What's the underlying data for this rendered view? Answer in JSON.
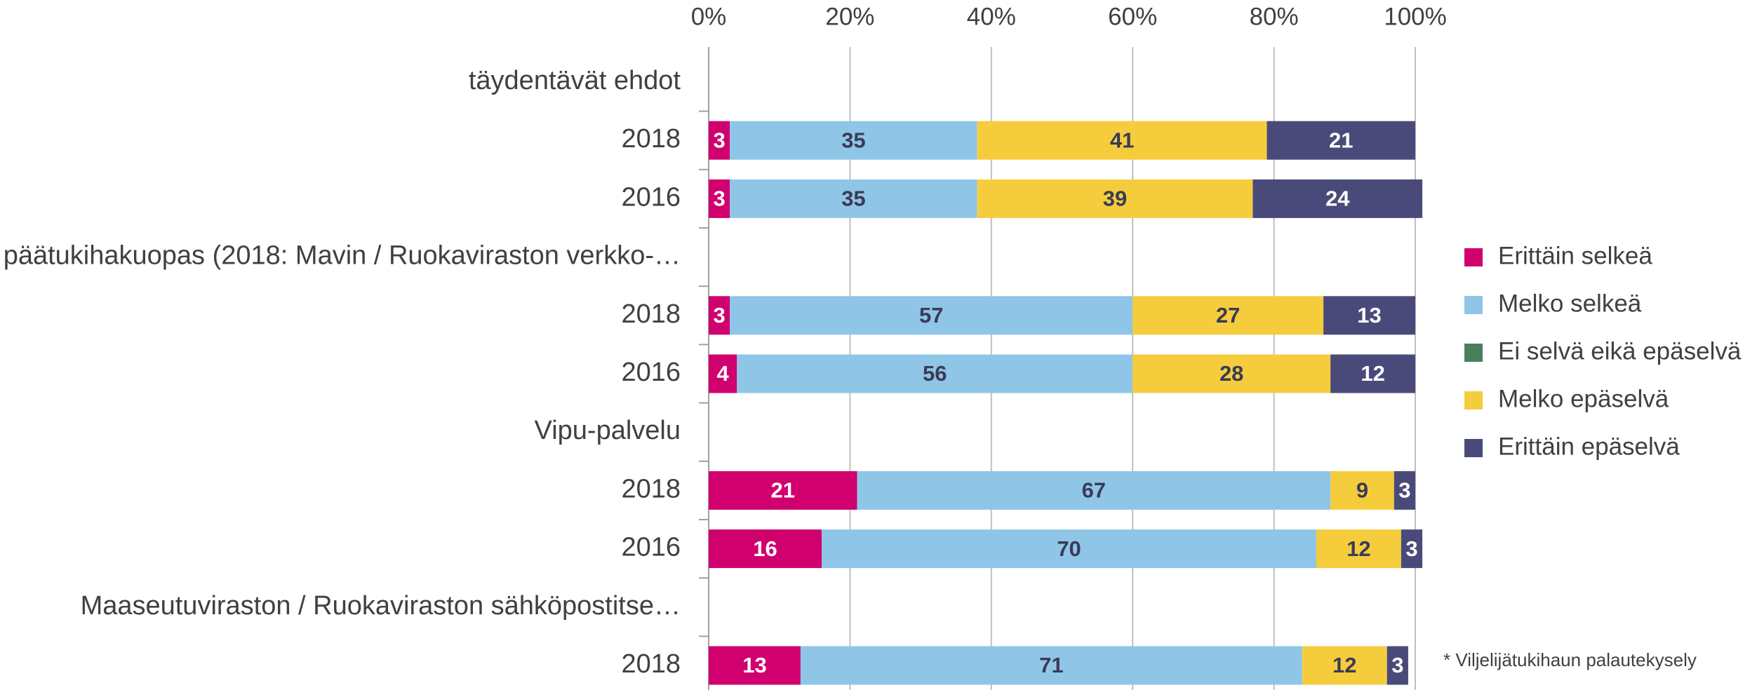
{
  "chart_data": {
    "type": "stacked_barh",
    "categories": [
      "täydentävät ehdot",
      "2018",
      "2016",
      "päätukihakuopas (2018: Mavin / Ruokaviraston verkko-…",
      "2018",
      "2016",
      "Vipu-palvelu",
      "2018",
      "2016",
      "Maaseutuviraston / Ruokaviraston sähköpostitse…",
      "2018"
    ],
    "series": [
      {
        "name": "Erittäin selkeä",
        "color": "#d0006f",
        "label_color": "#ffffff",
        "values": [
          null,
          3,
          3,
          null,
          3,
          4,
          null,
          21,
          16,
          null,
          13
        ]
      },
      {
        "name": "Melko selkeä",
        "color": "#8fc6e8",
        "label_color": "#3b3b55",
        "values": [
          null,
          35,
          35,
          null,
          57,
          56,
          null,
          67,
          70,
          null,
          71
        ]
      },
      {
        "name": "Ei selvä eikä epäselvä",
        "color": "#4a7f5e",
        "label_color": "#ffffff",
        "values": [
          null,
          0,
          0,
          null,
          0,
          0,
          null,
          0,
          0,
          null,
          0
        ]
      },
      {
        "name": "Melko epäselvä",
        "color": "#f5cd3c",
        "label_color": "#3b3b55",
        "values": [
          null,
          41,
          39,
          null,
          27,
          28,
          null,
          9,
          12,
          null,
          12
        ]
      },
      {
        "name": "Erittäin epäselvä",
        "color": "#4a4a7a",
        "label_color": "#ffffff",
        "values": [
          null,
          21,
          24,
          null,
          13,
          12,
          null,
          3,
          3,
          null,
          3
        ]
      }
    ],
    "xlim": [
      0,
      100
    ],
    "xticks": [
      {
        "value": 0,
        "label": "0%"
      },
      {
        "value": 20,
        "label": "20%"
      },
      {
        "value": 40,
        "label": "40%"
      },
      {
        "value": 60,
        "label": "60%"
      },
      {
        "value": 80,
        "label": "80%"
      },
      {
        "value": 100,
        "label": "100%"
      }
    ],
    "grid": true,
    "legend": "right",
    "annotation": "* Viljelijätukihaun palautekysely"
  }
}
